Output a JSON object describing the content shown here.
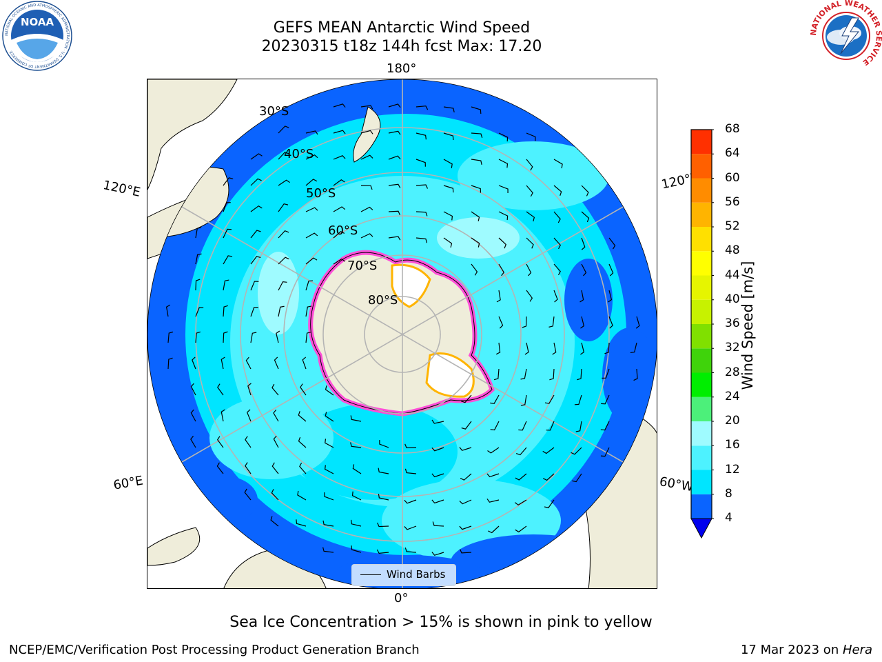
{
  "title": {
    "line1": "GEFS MEAN Antarctic Wind Speed",
    "line2": "20230315 t18z 144h fcst   Max: 17.20"
  },
  "logos": {
    "noaa_text": "NOAA",
    "noaa_ring_text": "NATIONAL OCEANIC AND ATMOSPHERIC ADMINISTRATION · U.S. DEPARTMENT OF COMMERCE",
    "nws_ring_text": "NATIONAL WEATHER SERVICE"
  },
  "map": {
    "longitude_labels": {
      "top": "180°",
      "bottom": "0°",
      "upper_left": "120°E",
      "upper_right": "120°W",
      "lower_left": "60°E",
      "lower_right": "60°W"
    },
    "latitude_labels": [
      "30°S",
      "40°S",
      "50°S",
      "60°S",
      "70°S",
      "80°S"
    ],
    "legend_label": "Wind Barbs"
  },
  "colorbar": {
    "label": "Wind Speed [m/s]",
    "ticks": [
      4,
      8,
      12,
      16,
      20,
      24,
      28,
      32,
      36,
      40,
      44,
      48,
      52,
      56,
      60,
      64,
      68
    ],
    "colors": [
      "#0a64ff",
      "#00e5ff",
      "#4df2ff",
      "#9ffbff",
      "#4cf07a",
      "#00ee00",
      "#3fd30b",
      "#80e000",
      "#c7f200",
      "#e6f500",
      "#ffff00",
      "#ffe000",
      "#ffb400",
      "#ff8c00",
      "#ff6000",
      "#ff3000",
      "#ff0000"
    ],
    "extend_color": "#0000ee"
  },
  "caption": "Sea Ice Concentration > 15% is shown in pink to yellow",
  "footer": {
    "left": "NCEP/EMC/Verification Post Processing Product Generation Branch",
    "right_prefix": "17 Mar 2023 on ",
    "right_host": "Hera"
  }
}
